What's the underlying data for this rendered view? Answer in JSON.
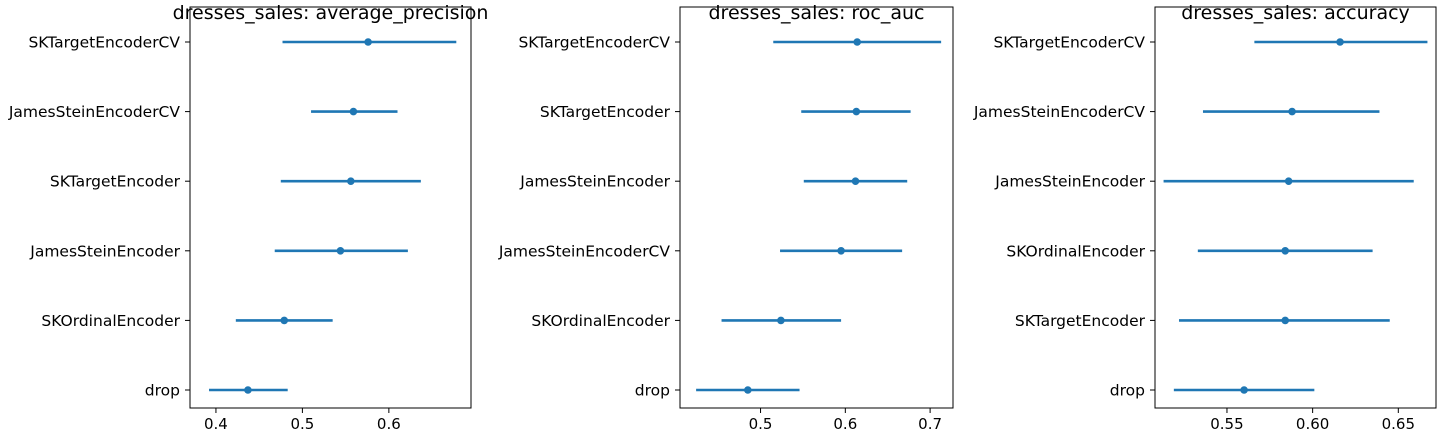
{
  "chart_data": [
    {
      "type": "errorbar",
      "title": "dresses_sales: average_precision",
      "xlabel": "",
      "ylabel": "",
      "xlim": [
        0.37,
        0.695
      ],
      "xticks": [
        0.4,
        0.5,
        0.6
      ],
      "xtick_labels": [
        "0.4",
        "0.5",
        "0.6"
      ],
      "color": "#1f77b4",
      "grid": false,
      "points": [
        {
          "label": "SKTargetEncoderCV",
          "mean": 0.576,
          "low": 0.477,
          "high": 0.678
        },
        {
          "label": "JamesSteinEncoderCV",
          "mean": 0.559,
          "low": 0.51,
          "high": 0.61
        },
        {
          "label": "SKTargetEncoder",
          "mean": 0.556,
          "low": 0.475,
          "high": 0.637
        },
        {
          "label": "JamesSteinEncoder",
          "mean": 0.544,
          "low": 0.468,
          "high": 0.622
        },
        {
          "label": "SKOrdinalEncoder",
          "mean": 0.479,
          "low": 0.423,
          "high": 0.535
        },
        {
          "label": "drop",
          "mean": 0.437,
          "low": 0.392,
          "high": 0.483
        }
      ]
    },
    {
      "type": "errorbar",
      "title": "dresses_sales: roc_auc",
      "xlabel": "",
      "ylabel": "",
      "xlim": [
        0.405,
        0.727
      ],
      "xticks": [
        0.5,
        0.6,
        0.7
      ],
      "xtick_labels": [
        "0.5",
        "0.6",
        "0.7"
      ],
      "color": "#1f77b4",
      "grid": false,
      "points": [
        {
          "label": "SKTargetEncoderCV",
          "mean": 0.614,
          "low": 0.515,
          "high": 0.713
        },
        {
          "label": "SKTargetEncoder",
          "mean": 0.613,
          "low": 0.548,
          "high": 0.677
        },
        {
          "label": "JamesSteinEncoder",
          "mean": 0.612,
          "low": 0.551,
          "high": 0.673
        },
        {
          "label": "JamesSteinEncoderCV",
          "mean": 0.595,
          "low": 0.523,
          "high": 0.667
        },
        {
          "label": "SKOrdinalEncoder",
          "mean": 0.524,
          "low": 0.454,
          "high": 0.595
        },
        {
          "label": "drop",
          "mean": 0.485,
          "low": 0.424,
          "high": 0.546
        }
      ]
    },
    {
      "type": "errorbar",
      "title": "dresses_sales: accuracy",
      "xlabel": "",
      "ylabel": "",
      "xlim": [
        0.508,
        0.672
      ],
      "xticks": [
        0.55,
        0.6,
        0.65
      ],
      "xtick_labels": [
        "0.55",
        "0.60",
        "0.65"
      ],
      "color": "#1f77b4",
      "grid": false,
      "points": [
        {
          "label": "SKTargetEncoderCV",
          "mean": 0.616,
          "low": 0.566,
          "high": 0.667
        },
        {
          "label": "JamesSteinEncoderCV",
          "mean": 0.588,
          "low": 0.536,
          "high": 0.639
        },
        {
          "label": "JamesSteinEncoder",
          "mean": 0.586,
          "low": 0.513,
          "high": 0.659
        },
        {
          "label": "SKOrdinalEncoder",
          "mean": 0.584,
          "low": 0.533,
          "high": 0.635
        },
        {
          "label": "SKTargetEncoder",
          "mean": 0.584,
          "low": 0.522,
          "high": 0.645
        },
        {
          "label": "drop",
          "mean": 0.56,
          "low": 0.519,
          "high": 0.601
        }
      ]
    }
  ]
}
